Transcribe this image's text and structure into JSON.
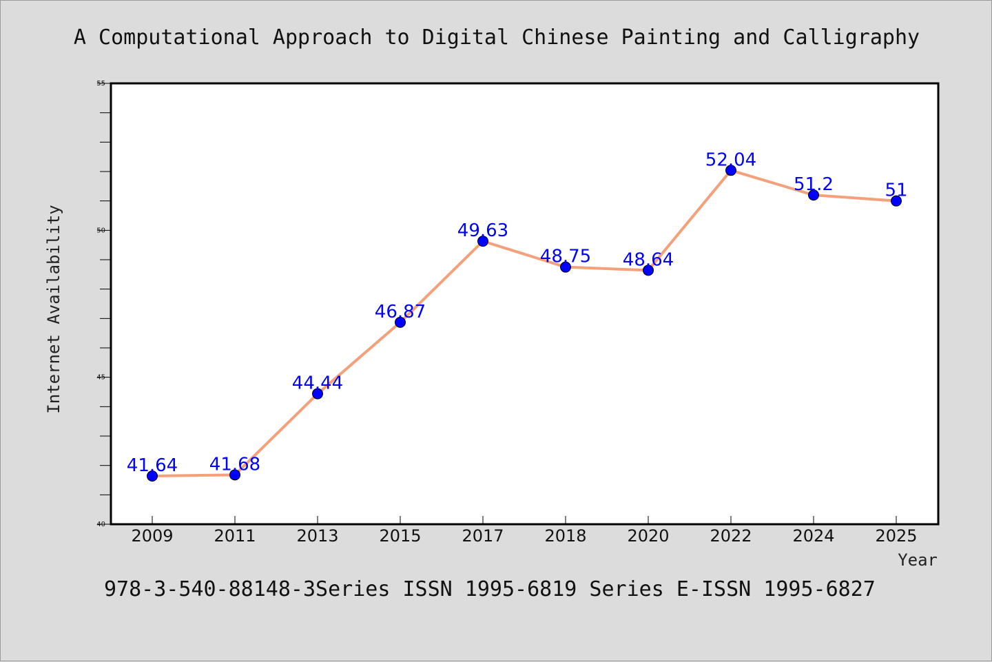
{
  "chart_data": {
    "type": "line",
    "title": "A Computational Approach to Digital Chinese Painting and Calligraphy",
    "footer": "978-3-540-88148-3Series ISSN 1995-6819 Series E-ISSN 1995-6827",
    "xlabel": "Year",
    "ylabel": "Internet Availability",
    "categories": [
      "2009",
      "2011",
      "2013",
      "2015",
      "2017",
      "2018",
      "2020",
      "2022",
      "2024",
      "2025"
    ],
    "series": [
      {
        "values": [
          41.64,
          41.68,
          44.44,
          46.87,
          49.63,
          48.75,
          48.64,
          52.04,
          51.2,
          51
        ]
      }
    ],
    "data_labels": [
      "41.64",
      "41.68",
      "44.44",
      "46.87",
      "49.63",
      "48.75",
      "48.64",
      "52.04",
      "51.2",
      "51"
    ],
    "ylim": [
      40,
      55
    ],
    "yticks": [
      "40",
      "45",
      "50",
      "55"
    ],
    "grid": false,
    "legend": "none",
    "colors": {
      "background": "#dcdcdc",
      "plot_area": "#ffffff",
      "line": "#f4a07a",
      "marker": "#0000ff",
      "data_label": "#0000ff"
    }
  }
}
